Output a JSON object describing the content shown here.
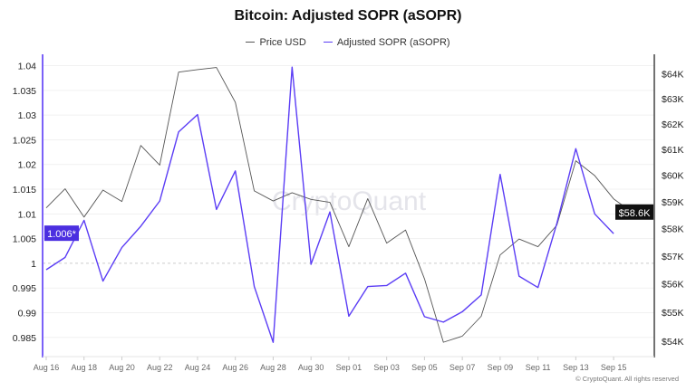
{
  "chart_data": {
    "type": "line",
    "title": "Bitcoin: Adjusted SOPR (aSOPR)",
    "watermark": "CryptoQuant",
    "footer": "© CryptoQuant. All rights reserved",
    "legend_placement": "top-center",
    "grid": true,
    "x": [
      "Aug 16",
      "Aug 17",
      "Aug 18",
      "Aug 19",
      "Aug 20",
      "Aug 21",
      "Aug 22",
      "Aug 23",
      "Aug 24",
      "Aug 25",
      "Aug 26",
      "Aug 27",
      "Aug 28",
      "Aug 29",
      "Aug 30",
      "Aug 31",
      "Sep 01",
      "Sep 02",
      "Sep 03",
      "Sep 04",
      "Sep 05",
      "Sep 06",
      "Sep 07",
      "Sep 08",
      "Sep 09",
      "Sep 10",
      "Sep 11",
      "Sep 12",
      "Sep 13",
      "Sep 14",
      "Sep 15",
      "Sep 16"
    ],
    "x_ticks": [
      "Aug 16",
      "Aug 18",
      "Aug 20",
      "Aug 22",
      "Aug 24",
      "Aug 26",
      "Aug 28",
      "Aug 30",
      "Sep 01",
      "Sep 03",
      "Sep 05",
      "Sep 07",
      "Sep 09",
      "Sep 11",
      "Sep 13",
      "Sep 15"
    ],
    "left_axis": {
      "ticks": [
        "1.04",
        "1.035",
        "1.03",
        "1.025",
        "1.02",
        "1.015",
        "1.01",
        "1.005",
        "1",
        "0.995",
        "0.99",
        "0.985"
      ],
      "ylim": [
        0.9813,
        1.0423
      ],
      "reference_line": 1,
      "current_label": "1.006*"
    },
    "right_axis": {
      "scale": "log",
      "ticks": [
        "$64K",
        "$63K",
        "$62K",
        "$61K",
        "$60K",
        "$59K",
        "$58K",
        "$57K",
        "$56K",
        "$55K",
        "$54K"
      ],
      "tick_values": [
        64,
        63,
        62,
        61,
        60,
        59,
        58,
        57,
        56,
        55,
        54
      ],
      "ylim": [
        53.5,
        64.8
      ],
      "unit": "thousand USD",
      "current_label": "$58.6K"
    },
    "series": [
      {
        "name": "Price USD",
        "axis": "right",
        "color": "#555555",
        "values": [
          58.77,
          59.49,
          58.43,
          59.44,
          59.01,
          61.15,
          60.39,
          64.07,
          64.17,
          64.26,
          62.85,
          59.41,
          59.03,
          59.34,
          59.09,
          58.98,
          57.34,
          59.12,
          57.47,
          57.95,
          56.18,
          53.96,
          54.17,
          54.86,
          57.04,
          57.62,
          57.34,
          58.13,
          60.56,
          59.99,
          59.11,
          58.6
        ]
      },
      {
        "name": "Adjusted SOPR (aSOPR)",
        "axis": "left",
        "color": "#5b3df5",
        "values": [
          0.9987,
          1.0012,
          1.0087,
          0.9964,
          1.0032,
          1.0075,
          1.0126,
          1.0266,
          1.0301,
          1.0109,
          1.0187,
          0.9953,
          0.984,
          1.0397,
          0.9998,
          1.0104,
          0.9893,
          0.9953,
          0.9955,
          0.998,
          0.9892,
          0.9881,
          0.9902,
          0.9936,
          1.018,
          0.9974,
          0.9951,
          1.0081,
          1.0232,
          1.01,
          1.006,
          null
        ]
      }
    ]
  }
}
